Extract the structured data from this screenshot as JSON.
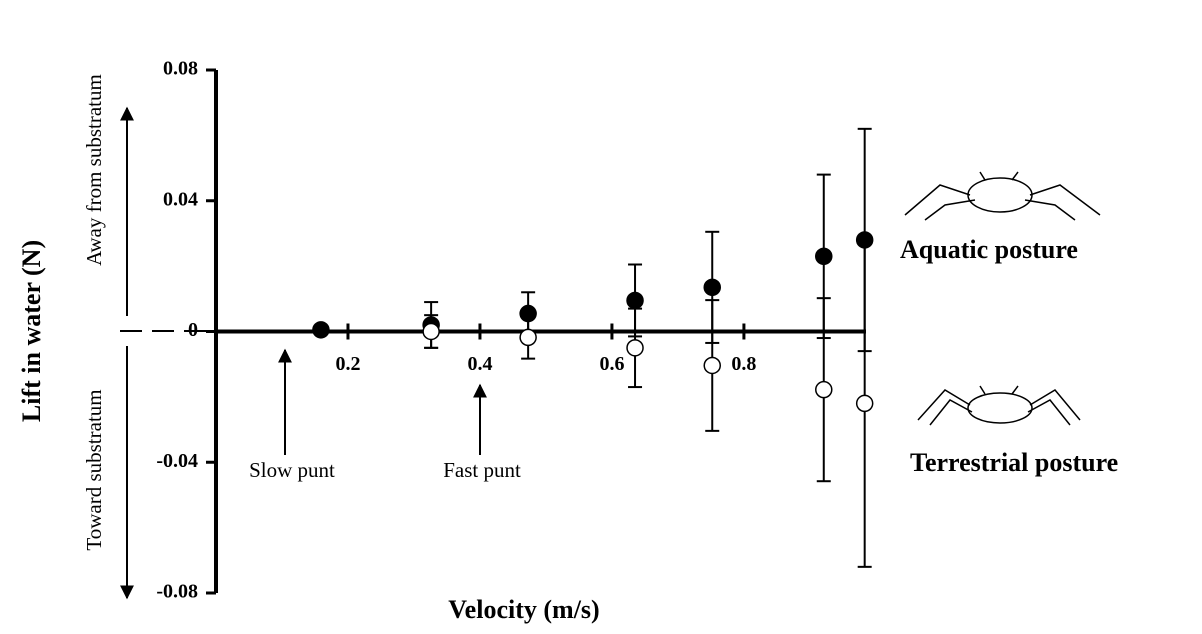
{
  "chart_data": {
    "type": "scatter",
    "y_label": "Lift in water (N)",
    "x_label": "Velocity (m/s)",
    "annotations": {
      "slow": "Slow punt",
      "fast": "Fast punt",
      "away": "Away from substratum",
      "toward": "Toward substratum"
    },
    "xlim": [
      0,
      0.985
    ],
    "ylim": [
      -0.08,
      0.08
    ],
    "xticks": [
      0.2,
      0.4,
      0.6,
      0.8
    ],
    "yticks": [
      -0.08,
      -0.04,
      0,
      0.04,
      0.08
    ],
    "series": [
      {
        "name": "Aquatic posture",
        "color": "#000000",
        "filled": true,
        "x": [
          0.159,
          0.326,
          0.473,
          0.635,
          0.752,
          0.921,
          0.983
        ],
        "values": [
          0.0005,
          0.002,
          0.0055,
          0.0095,
          0.0135,
          0.023,
          0.028
        ],
        "errors": [
          0.001,
          0.007,
          0.0065,
          0.011,
          0.017,
          0.025,
          0.034
        ]
      },
      {
        "name": "Terrestrial posture",
        "color": "#000000",
        "filled": false,
        "x": [
          0.326,
          0.473,
          0.635,
          0.752,
          0.921,
          0.983
        ],
        "values": [
          0.0,
          -0.0018,
          -0.005,
          -0.0104,
          -0.0178,
          -0.022
        ],
        "errors": [
          0.005,
          0.0065,
          0.012,
          0.02,
          0.028,
          0.05
        ]
      }
    ]
  }
}
